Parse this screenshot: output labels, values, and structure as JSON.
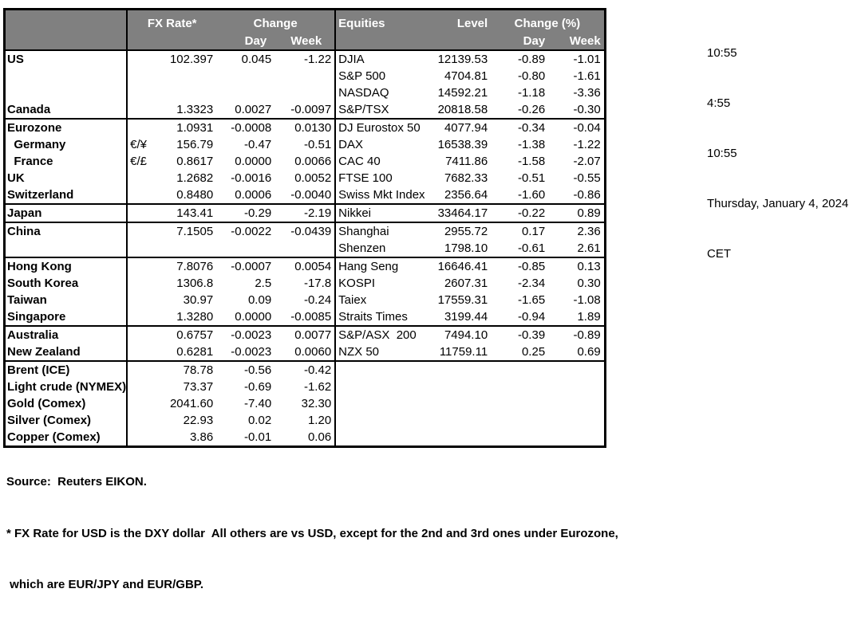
{
  "colors": {
    "header_bg": "#808080",
    "header_text": "#ffffff",
    "border": "#000000",
    "body_bg": "#ffffff"
  },
  "table": {
    "header": {
      "fx_rate": "FX Rate*",
      "change": "Change",
      "day": "Day",
      "week": "Week",
      "equities": "Equities",
      "level": "Level",
      "change_pct": "Change (%)"
    },
    "rows": [
      {
        "country": "US",
        "pair": "",
        "rate": "102.397",
        "day": "0.045",
        "week": "-1.22",
        "eq_name": "DJIA",
        "eq_level": "12139.53",
        "eq_day": "-0.89",
        "eq_week": "-1.01",
        "section_end": false
      },
      {
        "country": "",
        "pair": "",
        "rate": "",
        "day": "",
        "week": "",
        "eq_name": "S&P 500",
        "eq_level": "4704.81",
        "eq_day": "-0.80",
        "eq_week": "-1.61",
        "section_end": false
      },
      {
        "country": "",
        "pair": "",
        "rate": "",
        "day": "",
        "week": "",
        "eq_name": "NASDAQ",
        "eq_level": "14592.21",
        "eq_day": "-1.18",
        "eq_week": "-3.36",
        "section_end": false
      },
      {
        "country": "Canada",
        "pair": "",
        "rate": "1.3323",
        "day": "0.0027",
        "week": "-0.0097",
        "eq_name": "S&P/TSX",
        "eq_level": "20818.58",
        "eq_day": "-0.26",
        "eq_week": "-0.30",
        "section_end": true
      },
      {
        "country": "Eurozone",
        "pair": "",
        "rate": "1.0931",
        "day": "-0.0008",
        "week": "0.0130",
        "eq_name": "DJ Eurostox 50",
        "eq_level": "4077.94",
        "eq_day": "-0.34",
        "eq_week": "-0.04",
        "section_end": false
      },
      {
        "country": "  Germany",
        "pair": "€/¥",
        "rate": "156.79",
        "day": "-0.47",
        "week": "-0.51",
        "eq_name": "DAX",
        "eq_level": "16538.39",
        "eq_day": "-1.38",
        "eq_week": "-1.22",
        "section_end": false
      },
      {
        "country": "  France",
        "pair": "€/£",
        "rate": "0.8617",
        "day": "0.0000",
        "week": "0.0066",
        "eq_name": "CAC 40",
        "eq_level": "7411.86",
        "eq_day": "-1.58",
        "eq_week": "-2.07",
        "section_end": false
      },
      {
        "country": "UK",
        "pair": "",
        "rate": "1.2682",
        "day": "-0.0016",
        "week": "0.0052",
        "eq_name": "FTSE 100",
        "eq_level": "7682.33",
        "eq_day": "-0.51",
        "eq_week": "-0.55",
        "section_end": false
      },
      {
        "country": "Switzerland",
        "pair": "",
        "rate": "0.8480",
        "day": "0.0006",
        "week": "-0.0040",
        "eq_name": "Swiss Mkt Index",
        "eq_level": "2356.64",
        "eq_day": "-1.60",
        "eq_week": "-0.86",
        "section_end": true
      },
      {
        "country": "Japan",
        "pair": "",
        "rate": "143.41",
        "day": "-0.29",
        "week": "-2.19",
        "eq_name": "Nikkei",
        "eq_level": "33464.17",
        "eq_day": "-0.22",
        "eq_week": "0.89",
        "section_end": true
      },
      {
        "country": "China",
        "pair": "",
        "rate": "7.1505",
        "day": "-0.0022",
        "week": "-0.0439",
        "eq_name": "Shanghai",
        "eq_level": "2955.72",
        "eq_day": "0.17",
        "eq_week": "2.36",
        "section_end": false
      },
      {
        "country": "",
        "pair": "",
        "rate": "",
        "day": "",
        "week": "",
        "eq_name": "Shenzen",
        "eq_level": "1798.10",
        "eq_day": "-0.61",
        "eq_week": "2.61",
        "section_end": true
      },
      {
        "country": "Hong Kong",
        "pair": "",
        "rate": "7.8076",
        "day": "-0.0007",
        "week": "0.0054",
        "eq_name": "Hang Seng",
        "eq_level": "16646.41",
        "eq_day": "-0.85",
        "eq_week": "0.13",
        "section_end": false
      },
      {
        "country": "South Korea",
        "pair": "",
        "rate": "1306.8",
        "day": "2.5",
        "week": "-17.8",
        "eq_name": "KOSPI",
        "eq_level": "2607.31",
        "eq_day": "-2.34",
        "eq_week": "0.30",
        "section_end": false
      },
      {
        "country": "Taiwan",
        "pair": "",
        "rate": "30.97",
        "day": "0.09",
        "week": "-0.24",
        "eq_name": "Taiex",
        "eq_level": "17559.31",
        "eq_day": "-1.65",
        "eq_week": "-1.08",
        "section_end": false
      },
      {
        "country": "Singapore",
        "pair": "",
        "rate": "1.3280",
        "day": "0.0000",
        "week": "-0.0085",
        "eq_name": "Straits Times",
        "eq_level": "3199.44",
        "eq_day": "-0.94",
        "eq_week": "1.89",
        "section_end": true
      },
      {
        "country": "Australia",
        "pair": "",
        "rate": "0.6757",
        "day": "-0.0023",
        "week": "0.0077",
        "eq_name": "S&P/ASX  200",
        "eq_level": "7494.10",
        "eq_day": "-0.39",
        "eq_week": "-0.89",
        "section_end": false
      },
      {
        "country": "New Zealand",
        "pair": "",
        "rate": "0.6281",
        "day": "-0.0023",
        "week": "0.0060",
        "eq_name": "NZX 50",
        "eq_level": "11759.11",
        "eq_day": "0.25",
        "eq_week": "0.69",
        "section_end": true
      },
      {
        "country": "Brent (ICE)",
        "pair": "",
        "rate": "78.78",
        "day": "-0.56",
        "week": "-0.42",
        "eq_name": "",
        "eq_level": "",
        "eq_day": "",
        "eq_week": "",
        "section_end": false
      },
      {
        "country": "Light crude (NYMEX)",
        "pair": "",
        "rate": "73.37",
        "day": "-0.69",
        "week": "-1.62",
        "eq_name": "",
        "eq_level": "",
        "eq_day": "",
        "eq_week": "",
        "section_end": false
      },
      {
        "country": "Gold (Comex)",
        "pair": "",
        "rate": "2041.60",
        "day": "-7.40",
        "week": "32.30",
        "eq_name": "",
        "eq_level": "",
        "eq_day": "",
        "eq_week": "",
        "section_end": false
      },
      {
        "country": "Silver (Comex)",
        "pair": "",
        "rate": "22.93",
        "day": "0.02",
        "week": "1.20",
        "eq_name": "",
        "eq_level": "",
        "eq_day": "",
        "eq_week": "",
        "section_end": false
      },
      {
        "country": "Copper (Comex)",
        "pair": "",
        "rate": "3.86",
        "day": "-0.01",
        "week": "0.06",
        "eq_name": "",
        "eq_level": "",
        "eq_day": "",
        "eq_week": "",
        "section_end": false
      }
    ]
  },
  "timestamps": {
    "line1": "10:55",
    "line2": "4:55",
    "line3": "10:55",
    "line4": "Thursday, January 4, 2024",
    "line5": "CET"
  },
  "footer": {
    "source": "Source:  Reuters EIKON.",
    "note1": "* FX Rate for USD is the DXY dollar  All others are vs USD, except for the 2nd and 3rd ones under Eurozone,",
    "note2": " which are EUR/JPY and EUR/GBP."
  }
}
